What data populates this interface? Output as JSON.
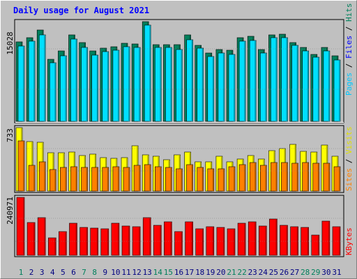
{
  "chart_data": [
    {
      "type": "bar",
      "panel": "top",
      "title": "Daily usage for August 2021",
      "categories": [
        "1",
        "2",
        "3",
        "4",
        "5",
        "6",
        "7",
        "8",
        "9",
        "10",
        "11",
        "12",
        "13",
        "14",
        "15",
        "16",
        "17",
        "18",
        "19",
        "20",
        "21",
        "22",
        "23",
        "24",
        "25",
        "26",
        "27",
        "28",
        "29",
        "30",
        "31"
      ],
      "ymax_label": "15028",
      "ylim": [
        0,
        15028
      ],
      "series": [
        {
          "name": "Hits",
          "color": "#00805c",
          "values": [
            11900,
            12500,
            13700,
            9300,
            10500,
            12900,
            11800,
            10500,
            11000,
            11200,
            11700,
            11600,
            14900,
            11500,
            11500,
            11500,
            12900,
            11400,
            10200,
            10700,
            10600,
            12500,
            12700,
            10700,
            12900,
            13000,
            11800,
            11100,
            10000,
            11100,
            9800
          ]
        },
        {
          "name": "Files",
          "color": "#0000ff",
          "values": [
            11300,
            12000,
            12900,
            8800,
            9800,
            12300,
            11100,
            9900,
            10400,
            10600,
            11200,
            11100,
            14400,
            11100,
            11100,
            10800,
            12200,
            11000,
            9700,
            10200,
            10000,
            12000,
            12100,
            10200,
            12500,
            12500,
            11400,
            10500,
            9600,
            10500,
            9200
          ]
        },
        {
          "name": "Pages",
          "color": "#00e0ff",
          "values": [
            11300,
            12000,
            12900,
            8800,
            9800,
            12300,
            11100,
            9900,
            10400,
            10600,
            11200,
            11100,
            14400,
            11100,
            11100,
            10800,
            12200,
            11000,
            9700,
            10200,
            10000,
            12000,
            12100,
            10200,
            12500,
            12500,
            11400,
            10500,
            9600,
            10500,
            9200
          ]
        }
      ]
    },
    {
      "type": "bar",
      "panel": "middle",
      "categories": [
        "1",
        "2",
        "3",
        "4",
        "5",
        "6",
        "7",
        "8",
        "9",
        "10",
        "11",
        "12",
        "13",
        "14",
        "15",
        "16",
        "17",
        "18",
        "19",
        "20",
        "21",
        "22",
        "23",
        "24",
        "25",
        "26",
        "27",
        "28",
        "29",
        "30",
        "31"
      ],
      "ymax_label": "733",
      "ylim": [
        0,
        733
      ],
      "series": [
        {
          "name": "Visits",
          "color": "#ffff00",
          "values": [
            733,
            570,
            560,
            440,
            440,
            450,
            410,
            430,
            390,
            380,
            390,
            520,
            420,
            400,
            360,
            420,
            450,
            340,
            340,
            400,
            340,
            370,
            410,
            370,
            470,
            490,
            540,
            460,
            450,
            530,
            400
          ]
        },
        {
          "name": "Sites",
          "color": "#ff8000",
          "values": [
            580,
            300,
            340,
            250,
            270,
            280,
            270,
            270,
            270,
            280,
            270,
            300,
            310,
            280,
            270,
            260,
            310,
            270,
            260,
            260,
            280,
            310,
            330,
            300,
            330,
            330,
            320,
            330,
            320,
            320,
            280
          ]
        }
      ]
    },
    {
      "type": "bar",
      "panel": "bottom",
      "categories": [
        "1",
        "2",
        "3",
        "4",
        "5",
        "6",
        "7",
        "8",
        "9",
        "10",
        "11",
        "12",
        "13",
        "14",
        "15",
        "16",
        "17",
        "18",
        "19",
        "20",
        "21",
        "22",
        "23",
        "24",
        "25",
        "26",
        "27",
        "28",
        "29",
        "30",
        "31"
      ],
      "ymax_label": "240971",
      "ylim": [
        0,
        240971
      ],
      "series": [
        {
          "name": "KBytes",
          "color": "#ff0000",
          "values": [
            240971,
            136000,
            158000,
            73000,
            99000,
            134000,
            116000,
            113000,
            109000,
            134000,
            121000,
            119000,
            158000,
            125000,
            139000,
            98000,
            138000,
            110000,
            119000,
            115000,
            109000,
            133000,
            140000,
            122000,
            150000,
            125000,
            120000,
            116000,
            84000,
            141000,
            119000
          ]
        }
      ]
    }
  ],
  "weekend_days": [
    1,
    7,
    8,
    14,
    15,
    21,
    22,
    28,
    29
  ],
  "colors": {
    "background": "#c0c0c0",
    "title": "#0000ff",
    "weekday_label": "#000080",
    "weekend_label": "#00805c",
    "slash": "#000000"
  }
}
